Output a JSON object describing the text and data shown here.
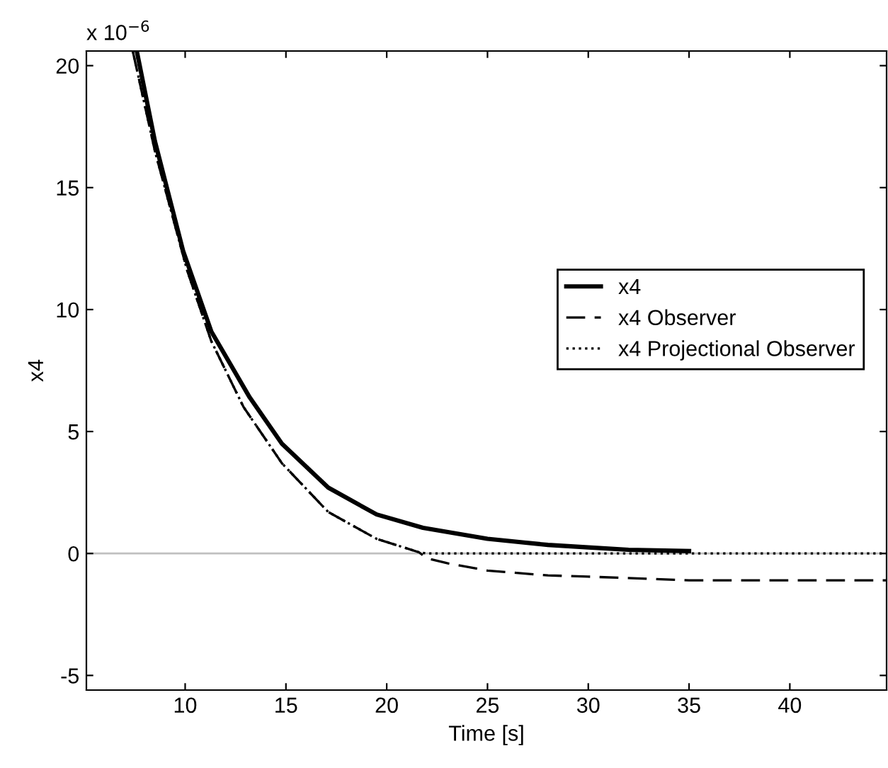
{
  "chart_data": {
    "type": "line",
    "xlabel": "Time [s]",
    "ylabel": "x4",
    "annotations": [
      "x 10$^{−6}$"
    ],
    "xlim": [
      5.1,
      44.8
    ],
    "xticks": [
      10,
      15,
      20,
      25,
      30,
      35,
      40
    ],
    "ylim": [
      -5.6,
      20.6
    ],
    "yticks": [
      -5,
      0,
      5,
      10,
      15,
      20
    ],
    "grid": false,
    "legend": "right",
    "marker": "none",
    "ref_lines": [
      {
        "axis": "y",
        "value": 0,
        "color": "#c0c0c0"
      }
    ],
    "series": [
      {
        "name": "x4",
        "color": "#000000",
        "line_style": "solid",
        "x": [
          7.6,
          8.5,
          9.9,
          11.3,
          13.2,
          14.8,
          17.1,
          19.5,
          21.8,
          25,
          28,
          30,
          32,
          35
        ],
        "values": [
          20.6,
          16.9,
          12.4,
          9.1,
          6.4,
          4.5,
          2.7,
          1.6,
          1.05,
          0.6,
          0.35,
          0.25,
          0.15,
          0.1
        ]
      },
      {
        "name": "x4 Observer",
        "color": "#000000",
        "line_style": "dashed",
        "x": [
          7.4,
          8.5,
          10.1,
          11.3,
          12.9,
          14.8,
          17.1,
          19.5,
          21.6,
          22,
          23,
          25,
          28,
          30,
          35,
          40,
          44.8
        ],
        "values": [
          20.6,
          16.5,
          11.6,
          8.7,
          6.0,
          3.7,
          1.7,
          0.6,
          0.05,
          -0.2,
          -0.4,
          -0.7,
          -0.9,
          -0.95,
          -1.1,
          -1.1,
          -1.1
        ]
      },
      {
        "name": "x4 Projectional Observer",
        "color": "#000000",
        "line_style": "dotted",
        "x": [
          7.4,
          8.5,
          10.1,
          11.3,
          12.9,
          14.8,
          17.1,
          19.5,
          21.6,
          22,
          25,
          30,
          35,
          40,
          44.8
        ],
        "values": [
          20.6,
          16.5,
          11.6,
          8.7,
          6.0,
          3.7,
          1.7,
          0.6,
          0.05,
          0,
          0,
          0,
          0,
          0,
          0
        ]
      }
    ]
  }
}
